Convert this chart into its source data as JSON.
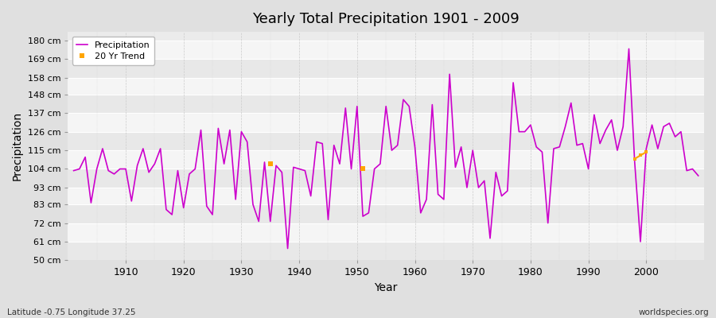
{
  "title": "Yearly Total Precipitation 1901 - 2009",
  "xlabel": "Year",
  "ylabel": "Precipitation",
  "subtitle": "Latitude -0.75 Longitude 37.25",
  "watermark": "worldspecies.org",
  "ylim": [
    50,
    185
  ],
  "ytick_labels": [
    "50 cm",
    "61 cm",
    "72 cm",
    "83 cm",
    "93 cm",
    "104 cm",
    "115 cm",
    "126 cm",
    "137 cm",
    "148 cm",
    "158 cm",
    "169 cm",
    "180 cm"
  ],
  "ytick_values": [
    50,
    61,
    72,
    83,
    93,
    104,
    115,
    126,
    137,
    148,
    158,
    169,
    180
  ],
  "years": [
    1901,
    1902,
    1903,
    1904,
    1905,
    1906,
    1907,
    1908,
    1909,
    1910,
    1911,
    1912,
    1913,
    1914,
    1915,
    1916,
    1917,
    1918,
    1919,
    1920,
    1921,
    1922,
    1923,
    1924,
    1925,
    1926,
    1927,
    1928,
    1929,
    1930,
    1931,
    1932,
    1933,
    1934,
    1935,
    1936,
    1937,
    1938,
    1939,
    1940,
    1941,
    1942,
    1943,
    1944,
    1945,
    1946,
    1947,
    1948,
    1949,
    1950,
    1951,
    1952,
    1953,
    1954,
    1955,
    1956,
    1957,
    1958,
    1959,
    1960,
    1961,
    1962,
    1963,
    1964,
    1965,
    1966,
    1967,
    1968,
    1969,
    1970,
    1971,
    1972,
    1973,
    1974,
    1975,
    1976,
    1977,
    1978,
    1979,
    1980,
    1981,
    1982,
    1983,
    1984,
    1985,
    1986,
    1987,
    1988,
    1989,
    1990,
    1991,
    1992,
    1993,
    1994,
    1995,
    1996,
    1997,
    1998,
    1999,
    2000,
    2001,
    2002,
    2003,
    2004,
    2005,
    2006,
    2007,
    2008,
    2009
  ],
  "precipitation": [
    103,
    104,
    111,
    84,
    104,
    116,
    103,
    101,
    104,
    104,
    85,
    106,
    116,
    102,
    107,
    116,
    80,
    77,
    103,
    81,
    101,
    104,
    127,
    82,
    77,
    128,
    107,
    127,
    86,
    126,
    120,
    83,
    73,
    108,
    73,
    106,
    102,
    57,
    105,
    104,
    103,
    88,
    120,
    119,
    74,
    118,
    107,
    140,
    104,
    141,
    76,
    78,
    104,
    107,
    141,
    115,
    118,
    145,
    141,
    117,
    78,
    86,
    142,
    89,
    86,
    160,
    105,
    117,
    93,
    115,
    93,
    97,
    63,
    102,
    88,
    91,
    155,
    126,
    126,
    130,
    117,
    114,
    72,
    116,
    117,
    129,
    143,
    118,
    119,
    104,
    136,
    119,
    127,
    133,
    115,
    129,
    175,
    108,
    61,
    116,
    130,
    116,
    129,
    131,
    123,
    126,
    103,
    104,
    100
  ],
  "trend_years_1": [
    1935
  ],
  "trend_values_1": [
    107
  ],
  "trend_years_2": [
    1951
  ],
  "trend_values_2": [
    104
  ],
  "trend_years_3": [
    1998,
    1999,
    2000
  ],
  "trend_values_3": [
    110,
    112,
    114
  ],
  "precip_color": "#CC00CC",
  "trend_color": "#FFA500",
  "bg_color": "#E0E0E0",
  "plot_bg_color": "#EBEBEB",
  "grid_color_h": "#FFFFFF",
  "grid_color_v": "#CCCCCC"
}
